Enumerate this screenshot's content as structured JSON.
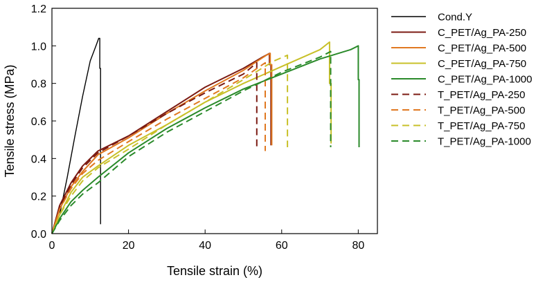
{
  "chart_data": {
    "type": "line",
    "title": "",
    "xlabel": "Tensile strain (%)",
    "ylabel": "Tensile stress (MPa)",
    "xlim": [
      0,
      85
    ],
    "ylim": [
      0,
      1.2
    ],
    "xticks": [
      0,
      20,
      40,
      60,
      80
    ],
    "yticks": [
      0.0,
      0.2,
      0.4,
      0.6,
      0.8,
      1.0,
      1.2
    ],
    "ytick_labels": [
      "0.0",
      "0.2",
      "0.4",
      "0.6",
      "0.8",
      "1.0",
      "1.2"
    ],
    "legend_position": "right",
    "series": [
      {
        "name": "Cond.Y",
        "color": "#000000",
        "dash": "solid",
        "x": [
          0,
          2,
          4,
          6,
          8,
          10,
          11.5,
          12.2,
          12.5,
          12.5,
          12.7,
          12.7
        ],
        "y": [
          0,
          0.1,
          0.3,
          0.52,
          0.73,
          0.92,
          1.0,
          1.04,
          1.04,
          0.88,
          0.88,
          0.05
        ]
      },
      {
        "name": "C_PET/Ag_PA-250",
        "color": "#7b1a12",
        "dash": "solid",
        "x": [
          0,
          2,
          5,
          8,
          12,
          20,
          30,
          40,
          50,
          55,
          56.8,
          56.8,
          57.2,
          57.2
        ],
        "y": [
          0,
          0.15,
          0.27,
          0.36,
          0.44,
          0.52,
          0.65,
          0.78,
          0.88,
          0.94,
          0.96,
          0.9,
          0.9,
          0.47
        ]
      },
      {
        "name": "C_PET/Ag_PA-500",
        "color": "#e07820",
        "dash": "solid",
        "x": [
          0,
          2,
          5,
          8,
          12,
          20,
          30,
          40,
          50,
          56,
          57.0,
          57.0,
          57.4,
          57.4
        ],
        "y": [
          0,
          0.13,
          0.25,
          0.33,
          0.42,
          0.51,
          0.64,
          0.76,
          0.87,
          0.95,
          0.96,
          0.9,
          0.9,
          0.47
        ]
      },
      {
        "name": "C_PET/Ag_PA-750",
        "color": "#c8c028",
        "dash": "solid",
        "x": [
          0,
          2,
          5,
          8,
          12,
          20,
          30,
          40,
          50,
          60,
          70,
          72.5,
          72.5,
          72.9,
          72.9
        ],
        "y": [
          0,
          0.1,
          0.22,
          0.3,
          0.36,
          0.47,
          0.58,
          0.7,
          0.8,
          0.89,
          0.98,
          1.02,
          0.8,
          0.8,
          0.48
        ]
      },
      {
        "name": "C_PET/Ag_PA-1000",
        "color": "#2a8a2a",
        "dash": "solid",
        "x": [
          0,
          2,
          5,
          8,
          12,
          20,
          30,
          40,
          50,
          60,
          70,
          78,
          80,
          80,
          80.2,
          80.2
        ],
        "y": [
          0,
          0.08,
          0.17,
          0.23,
          0.3,
          0.43,
          0.56,
          0.67,
          0.77,
          0.85,
          0.93,
          0.98,
          1.0,
          0.82,
          0.82,
          0.46
        ]
      },
      {
        "name": "T_PET/Ag_PA-250",
        "color": "#7b1a12",
        "dash": "dashed",
        "x": [
          0,
          2,
          5,
          8,
          12,
          20,
          30,
          40,
          50,
          53.5,
          53.5
        ],
        "y": [
          0,
          0.14,
          0.26,
          0.35,
          0.43,
          0.52,
          0.64,
          0.75,
          0.85,
          0.91,
          0.45
        ]
      },
      {
        "name": "T_PET/Ag_PA-500",
        "color": "#e07820",
        "dash": "dashed",
        "x": [
          0,
          2,
          5,
          8,
          12,
          20,
          30,
          40,
          50,
          55.7,
          55.7
        ],
        "y": [
          0,
          0.13,
          0.24,
          0.32,
          0.39,
          0.49,
          0.61,
          0.72,
          0.83,
          0.91,
          0.44
        ]
      },
      {
        "name": "T_PET/Ag_PA-750",
        "color": "#c8c028",
        "dash": "dashed",
        "x": [
          0,
          2,
          5,
          8,
          12,
          20,
          30,
          40,
          50,
          58,
          61.5,
          61.5
        ],
        "y": [
          0,
          0.1,
          0.2,
          0.28,
          0.35,
          0.45,
          0.58,
          0.7,
          0.82,
          0.92,
          0.95,
          0.46
        ]
      },
      {
        "name": "T_PET/Ag_PA-1000",
        "color": "#2a8a2a",
        "dash": "dashed",
        "x": [
          0,
          2,
          5,
          8,
          12,
          20,
          30,
          40,
          50,
          60,
          70,
          72.8,
          72.8
        ],
        "y": [
          0,
          0.07,
          0.15,
          0.21,
          0.27,
          0.41,
          0.54,
          0.65,
          0.76,
          0.86,
          0.94,
          0.97,
          0.46
        ]
      }
    ]
  }
}
